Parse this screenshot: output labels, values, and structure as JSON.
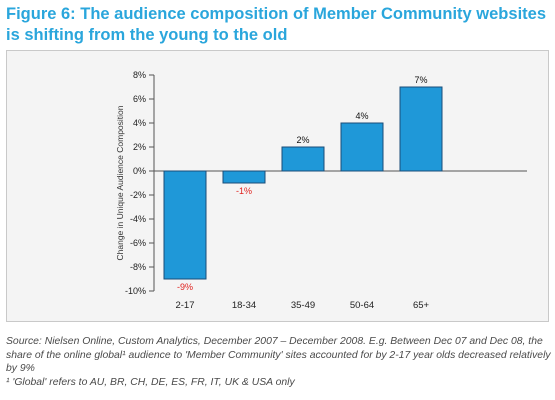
{
  "figure": {
    "title": "Figure 6: The audience composition of Member Community websites is shifting from the young to the old"
  },
  "chart_data": {
    "type": "bar",
    "categories": [
      "2-17",
      "18-34",
      "35-49",
      "50-64",
      "65+"
    ],
    "values": [
      -9,
      -1,
      2,
      4,
      7
    ],
    "data_labels": [
      "-9%",
      "-1%",
      "2%",
      "4%",
      "7%"
    ],
    "ylabel": "Change in Unique Audience Composition",
    "xlabel": "",
    "ylim": [
      -10,
      8
    ],
    "yticks": [
      8,
      6,
      4,
      2,
      0,
      -2,
      -4,
      -6,
      -8,
      -10
    ],
    "ytick_labels": [
      "8%",
      "6%",
      "4%",
      "2%",
      "0%",
      "-2%",
      "-4%",
      "-6%",
      "-8%",
      "-10%"
    ],
    "grid": false,
    "colors": {
      "bar_fill": "#1f98d8",
      "bar_stroke": "#1a4d78",
      "positive_label": "#111111",
      "negative_label": "#e0231f",
      "axis": "#555555"
    }
  },
  "footer": {
    "source": "Source: Nielsen Online, Custom Analytics, December 2007 – December 2008. E.g. Between Dec 07 and Dec 08, the share of the online global¹ audience to 'Member Community' sites accounted for by 2-17 year olds decreased relatively by 9%",
    "note": "¹ 'Global' refers to AU, BR, CH, DE, ES, FR, IT, UK & USA only"
  }
}
